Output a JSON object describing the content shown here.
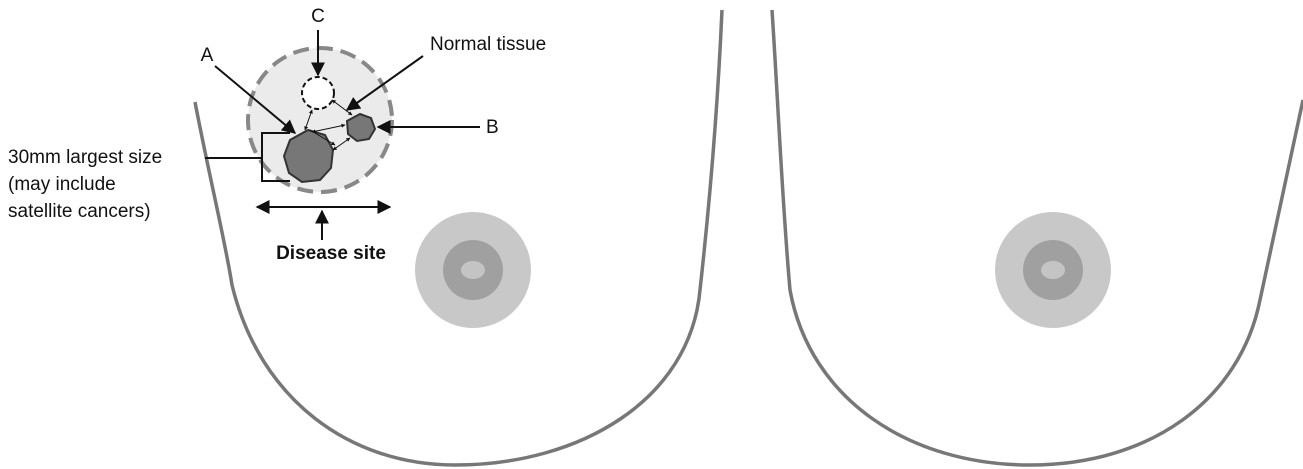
{
  "labels": {
    "c": "C",
    "a": "A",
    "normal": "Normal tissue",
    "b": "B",
    "size_line1": "30mm largest size",
    "size_line2": "(may include",
    "size_line3": "satellite cancers)",
    "disease_site": "Disease site"
  }
}
